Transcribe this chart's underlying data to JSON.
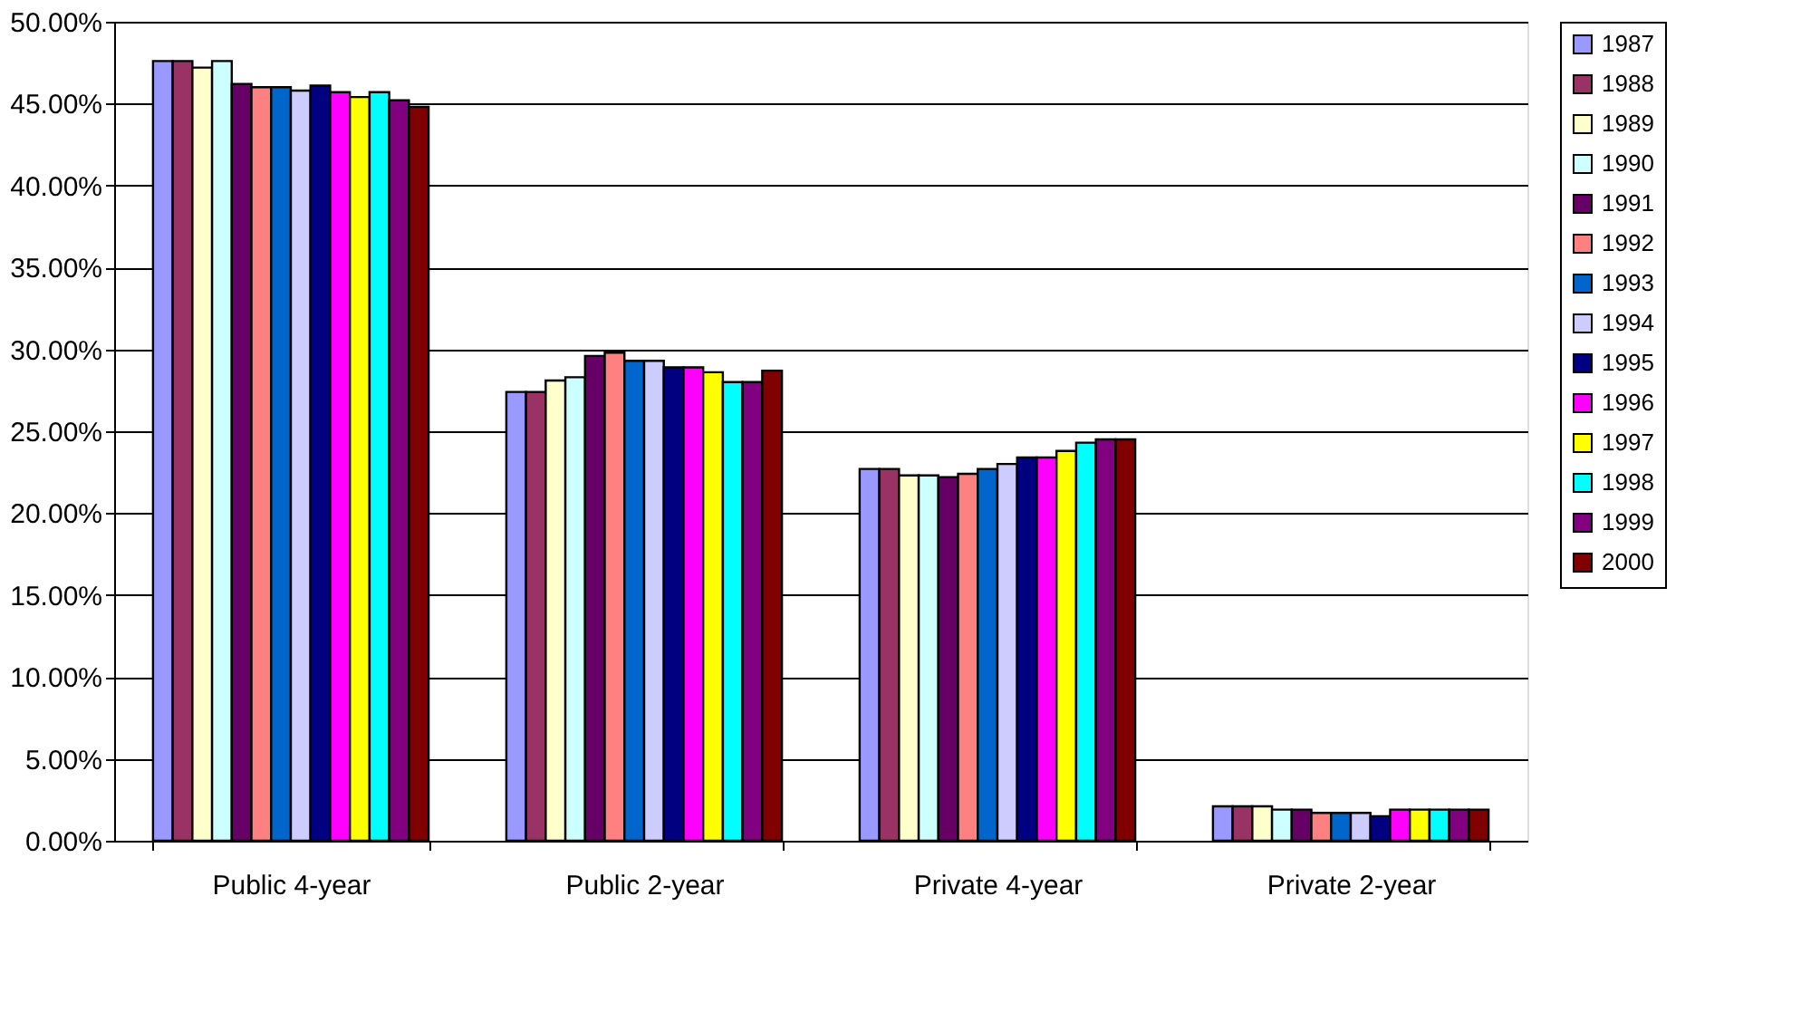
{
  "chart_data": {
    "type": "bar",
    "categories": [
      "Public 4-year",
      "Public 2-year",
      "Private 4-year",
      "Private 2-year"
    ],
    "series": [
      {
        "name": "1987",
        "color": "#9999ff",
        "values": [
          47.6,
          27.4,
          22.7,
          2.1
        ]
      },
      {
        "name": "1988",
        "color": "#993366",
        "values": [
          47.6,
          27.4,
          22.7,
          2.1
        ]
      },
      {
        "name": "1989",
        "color": "#ffffcc",
        "values": [
          47.2,
          28.1,
          22.3,
          2.1
        ]
      },
      {
        "name": "1990",
        "color": "#ccffff",
        "values": [
          47.6,
          28.3,
          22.3,
          1.9
        ]
      },
      {
        "name": "1991",
        "color": "#660066",
        "values": [
          46.2,
          29.6,
          22.2,
          1.9
        ]
      },
      {
        "name": "1992",
        "color": "#ff8080",
        "values": [
          46.0,
          29.8,
          22.4,
          1.7
        ]
      },
      {
        "name": "1993",
        "color": "#0066cc",
        "values": [
          46.0,
          29.3,
          22.7,
          1.7
        ]
      },
      {
        "name": "1994",
        "color": "#ccccff",
        "values": [
          45.8,
          29.3,
          23.0,
          1.7
        ]
      },
      {
        "name": "1995",
        "color": "#000080",
        "values": [
          46.1,
          28.9,
          23.4,
          1.5
        ]
      },
      {
        "name": "1996",
        "color": "#ff00ff",
        "values": [
          45.7,
          28.9,
          23.4,
          1.9
        ]
      },
      {
        "name": "1997",
        "color": "#ffff00",
        "values": [
          45.4,
          28.6,
          23.8,
          1.9
        ]
      },
      {
        "name": "1998",
        "color": "#00ffff",
        "values": [
          45.7,
          28.0,
          24.3,
          1.9
        ]
      },
      {
        "name": "1999",
        "color": "#800080",
        "values": [
          45.2,
          28.0,
          24.5,
          1.9
        ]
      },
      {
        "name": "2000",
        "color": "#800000",
        "values": [
          44.8,
          28.7,
          24.5,
          1.9
        ]
      }
    ],
    "ylim": [
      0,
      50
    ],
    "yticks": [
      {
        "value": 0,
        "label": "0.00%"
      },
      {
        "value": 5,
        "label": "5.00%"
      },
      {
        "value": 10,
        "label": "10.00%"
      },
      {
        "value": 15,
        "label": "15.00%"
      },
      {
        "value": 20,
        "label": "20.00%"
      },
      {
        "value": 25,
        "label": "25.00%"
      },
      {
        "value": 30,
        "label": "30.00%"
      },
      {
        "value": 35,
        "label": "35.00%"
      },
      {
        "value": 40,
        "label": "40.00%"
      },
      {
        "value": 45,
        "label": "45.00%"
      },
      {
        "value": 50,
        "label": "50.00%"
      }
    ],
    "grid": "y",
    "legend": "right"
  }
}
